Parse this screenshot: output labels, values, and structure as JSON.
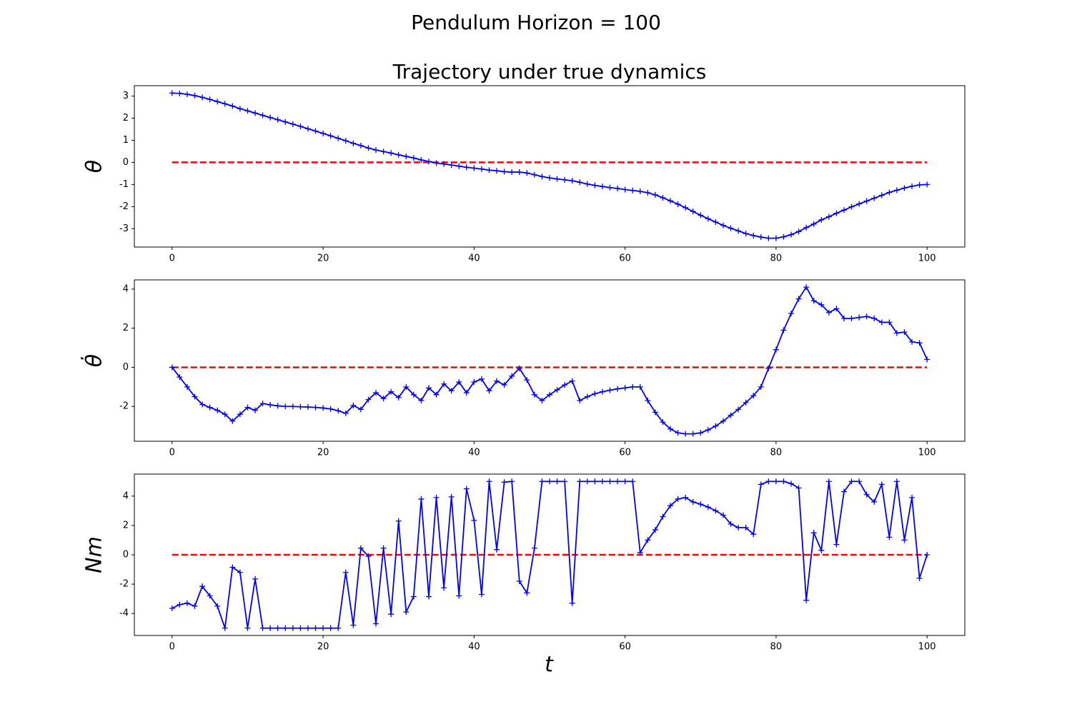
{
  "title": "Pendulum Horizon = 100",
  "chart_data": [
    {
      "type": "line",
      "title": "Trajectory under true dynamics",
      "ylabel": "θ",
      "x": [
        0,
        1,
        2,
        3,
        4,
        5,
        6,
        7,
        8,
        9,
        10,
        11,
        12,
        13,
        14,
        15,
        16,
        17,
        18,
        19,
        20,
        21,
        22,
        23,
        24,
        25,
        26,
        27,
        28,
        29,
        30,
        31,
        32,
        33,
        34,
        35,
        36,
        37,
        38,
        39,
        40,
        41,
        42,
        43,
        44,
        45,
        46,
        47,
        48,
        49,
        50,
        51,
        52,
        53,
        54,
        55,
        56,
        57,
        58,
        59,
        60,
        61,
        62,
        63,
        64,
        65,
        66,
        67,
        68,
        69,
        70,
        71,
        72,
        73,
        74,
        75,
        76,
        77,
        78,
        79,
        80,
        81,
        82,
        83,
        84,
        85,
        86,
        87,
        88,
        89,
        90,
        91,
        92,
        93,
        94,
        95,
        96,
        97,
        98,
        99,
        100
      ],
      "series": [
        {
          "color": "#0000ff",
          "marker": "+",
          "values": [
            3.14,
            3.12,
            3.08,
            3.02,
            2.94,
            2.85,
            2.75,
            2.65,
            2.55,
            2.43,
            2.33,
            2.23,
            2.13,
            2.03,
            1.93,
            1.83,
            1.73,
            1.63,
            1.52,
            1.42,
            1.31,
            1.2,
            1.09,
            0.98,
            0.86,
            0.76,
            0.65,
            0.56,
            0.49,
            0.42,
            0.34,
            0.27,
            0.2,
            0.11,
            0.04,
            -0.03,
            -0.07,
            -0.12,
            -0.17,
            -0.22,
            -0.26,
            -0.3,
            -0.35,
            -0.38,
            -0.42,
            -0.44,
            -0.44,
            -0.48,
            -0.56,
            -0.64,
            -0.7,
            -0.75,
            -0.79,
            -0.83,
            -0.9,
            -0.98,
            -1.04,
            -1.09,
            -1.14,
            -1.18,
            -1.23,
            -1.27,
            -1.31,
            -1.37,
            -1.47,
            -1.6,
            -1.74,
            -1.89,
            -2.05,
            -2.22,
            -2.39,
            -2.55,
            -2.7,
            -2.85,
            -2.98,
            -3.1,
            -3.22,
            -3.31,
            -3.38,
            -3.43,
            -3.43,
            -3.37,
            -3.27,
            -3.13,
            -2.95,
            -2.79,
            -2.6,
            -2.46,
            -2.3,
            -2.16,
            -2.01,
            -1.88,
            -1.75,
            -1.62,
            -1.49,
            -1.36,
            -1.26,
            -1.16,
            -1.08,
            -1.02,
            -1.0
          ]
        }
      ],
      "hlines": [
        {
          "y": 0,
          "color": "#ff0000",
          "dashed": true
        }
      ],
      "xlim": [
        -5,
        105
      ],
      "xticks": [
        0,
        20,
        40,
        60,
        80,
        100
      ],
      "ylim": [
        -3.83,
        3.47
      ],
      "yticks": [
        -3,
        -2,
        -1,
        0,
        1,
        2,
        3
      ]
    },
    {
      "type": "line",
      "ylabel": "θ̇",
      "x": [
        0,
        1,
        2,
        3,
        4,
        5,
        6,
        7,
        8,
        9,
        10,
        11,
        12,
        13,
        14,
        15,
        16,
        17,
        18,
        19,
        20,
        21,
        22,
        23,
        24,
        25,
        26,
        27,
        28,
        29,
        30,
        31,
        32,
        33,
        34,
        35,
        36,
        37,
        38,
        39,
        40,
        41,
        42,
        43,
        44,
        45,
        46,
        47,
        48,
        49,
        50,
        51,
        52,
        53,
        54,
        55,
        56,
        57,
        58,
        59,
        60,
        61,
        62,
        63,
        64,
        65,
        66,
        67,
        68,
        69,
        70,
        71,
        72,
        73,
        74,
        75,
        76,
        77,
        78,
        79,
        80,
        81,
        82,
        83,
        84,
        85,
        86,
        87,
        88,
        89,
        90,
        91,
        92,
        93,
        94,
        95,
        96,
        97,
        98,
        99,
        100
      ],
      "series": [
        {
          "color": "#0000ff",
          "marker": "+",
          "values": [
            0,
            -0.5,
            -1.0,
            -1.5,
            -1.9,
            -2.05,
            -2.2,
            -2.4,
            -2.75,
            -2.4,
            -2.05,
            -2.2,
            -1.85,
            -1.92,
            -1.97,
            -2.0,
            -2.0,
            -2.02,
            -2.03,
            -2.05,
            -2.08,
            -2.13,
            -2.22,
            -2.35,
            -1.95,
            -2.15,
            -1.65,
            -1.3,
            -1.6,
            -1.25,
            -1.55,
            -1.0,
            -1.4,
            -1.7,
            -1.05,
            -1.4,
            -0.85,
            -1.2,
            -0.75,
            -1.3,
            -0.75,
            -0.6,
            -1.2,
            -0.7,
            -0.9,
            -0.45,
            -0.05,
            -0.65,
            -1.4,
            -1.7,
            -1.4,
            -1.15,
            -0.9,
            -0.7,
            -1.7,
            -1.5,
            -1.35,
            -1.25,
            -1.17,
            -1.1,
            -1.05,
            -1.0,
            -1.0,
            -1.7,
            -2.3,
            -2.8,
            -3.15,
            -3.35,
            -3.4,
            -3.4,
            -3.35,
            -3.2,
            -3.0,
            -2.75,
            -2.45,
            -2.15,
            -1.8,
            -1.45,
            -1.0,
            -0.05,
            0.9,
            1.9,
            2.75,
            3.5,
            4.1,
            3.4,
            3.2,
            2.8,
            3.0,
            2.5,
            2.5,
            2.55,
            2.6,
            2.5,
            2.3,
            2.3,
            1.75,
            1.8,
            1.3,
            1.25,
            0.4
          ]
        }
      ],
      "hlines": [
        {
          "y": 0,
          "color": "#ff0000",
          "dashed": true
        }
      ],
      "xlim": [
        -5,
        105
      ],
      "xticks": [
        0,
        20,
        40,
        60,
        80,
        100
      ],
      "ylim": [
        -3.78,
        4.47
      ],
      "yticks": [
        -2,
        0,
        2,
        4
      ]
    },
    {
      "type": "line",
      "ylabel": "Nm",
      "xlabel": "t",
      "x": [
        0,
        1,
        2,
        3,
        4,
        5,
        6,
        7,
        8,
        9,
        10,
        11,
        12,
        13,
        14,
        15,
        16,
        17,
        18,
        19,
        20,
        21,
        22,
        23,
        24,
        25,
        26,
        27,
        28,
        29,
        30,
        31,
        32,
        33,
        34,
        35,
        36,
        37,
        38,
        39,
        40,
        41,
        42,
        43,
        44,
        45,
        46,
        47,
        48,
        49,
        50,
        51,
        52,
        53,
        54,
        55,
        56,
        57,
        58,
        59,
        60,
        61,
        62,
        63,
        64,
        65,
        66,
        67,
        68,
        69,
        70,
        71,
        72,
        73,
        74,
        75,
        76,
        77,
        78,
        79,
        80,
        81,
        82,
        83,
        84,
        85,
        86,
        87,
        88,
        89,
        90,
        91,
        92,
        93,
        94,
        95,
        96,
        97,
        98,
        99,
        100
      ],
      "series": [
        {
          "color": "#0000ff",
          "marker": "+",
          "values": [
            -3.65,
            -3.4,
            -3.3,
            -3.5,
            -2.15,
            -2.8,
            -3.5,
            -5,
            -0.85,
            -1.2,
            -5,
            -1.65,
            -5,
            -5,
            -5,
            -5,
            -5,
            -5,
            -5,
            -5,
            -5,
            -5,
            -5,
            -1.2,
            -4.8,
            0.45,
            -0.1,
            -4.7,
            0.45,
            -4.05,
            2.3,
            -3.9,
            -2.85,
            3.8,
            -2.85,
            3.9,
            -2.25,
            3.95,
            -2.8,
            4.5,
            2.35,
            -2.7,
            5,
            0.35,
            4.95,
            5,
            -1.8,
            -2.6,
            0.45,
            5,
            5,
            5,
            5,
            -3.3,
            5,
            5,
            5,
            5,
            5,
            5,
            5,
            5,
            0.15,
            1.0,
            1.7,
            2.6,
            3.35,
            3.8,
            3.9,
            3.6,
            3.45,
            3.25,
            3.0,
            2.7,
            2.1,
            1.85,
            1.85,
            1.4,
            4.8,
            5,
            5,
            5,
            4.85,
            4.55,
            -3.1,
            1.5,
            0.3,
            5,
            0.7,
            4.3,
            5,
            5,
            4.1,
            3.6,
            4.8,
            1.2,
            5,
            1.0,
            3.9,
            -1.6,
            0
          ]
        }
      ],
      "hlines": [
        {
          "y": 0,
          "color": "#ff0000",
          "dashed": true
        }
      ],
      "xlim": [
        -5,
        105
      ],
      "xticks": [
        0,
        20,
        40,
        60,
        80,
        100
      ],
      "ylim": [
        -5.5,
        5.5
      ],
      "yticks": [
        -4,
        -2,
        0,
        2,
        4
      ]
    }
  ]
}
